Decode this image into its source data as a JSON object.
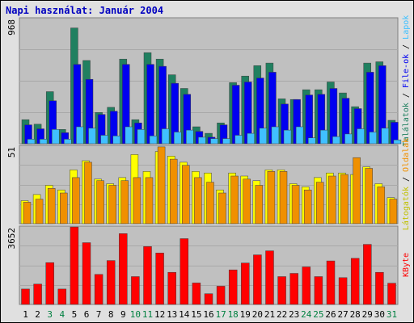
{
  "title": "Napi használat: Január 2004",
  "chart_data": [
    {
      "type": "bar",
      "ymax_label": "968",
      "ylim": [
        0,
        968
      ],
      "categories": [
        "1",
        "2",
        "3",
        "4",
        "5",
        "6",
        "7",
        "8",
        "9",
        "10",
        "11",
        "12",
        "13",
        "14",
        "15",
        "16",
        "17",
        "18",
        "19",
        "20",
        "21",
        "22",
        "23",
        "24",
        "25",
        "26",
        "27",
        "28",
        "29",
        "30",
        "31"
      ],
      "weekend_days": [
        "3",
        "4",
        "10",
        "11",
        "17",
        "18",
        "24",
        "25",
        "31"
      ],
      "series": [
        {
          "name": "Találatok",
          "color": "#208060",
          "values": [
            185,
            150,
            400,
            110,
            890,
            640,
            240,
            280,
            650,
            185,
            700,
            650,
            530,
            425,
            130,
            80,
            160,
            470,
            520,
            600,
            620,
            345,
            340,
            415,
            415,
            475,
            390,
            285,
            620,
            630,
            180
          ]
        },
        {
          "name": "File-ok",
          "color": "#0000f0",
          "values": [
            145,
            115,
            330,
            85,
            610,
            495,
            225,
            250,
            610,
            160,
            610,
            595,
            465,
            380,
            95,
            50,
            145,
            450,
            475,
            505,
            550,
            305,
            340,
            375,
            380,
            425,
            350,
            270,
            550,
            600,
            165
          ]
        },
        {
          "name": "Lapok",
          "color": "#40c0ff",
          "values": [
            35,
            35,
            110,
            35,
            130,
            120,
            65,
            60,
            130,
            110,
            60,
            115,
            90,
            105,
            50,
            40,
            40,
            65,
            80,
            120,
            130,
            105,
            130,
            45,
            105,
            55,
            75,
            115,
            90,
            120,
            30
          ]
        }
      ]
    },
    {
      "type": "bar",
      "ymax_label": "51",
      "ylim": [
        0,
        51
      ],
      "categories": [
        "1",
        "2",
        "3",
        "4",
        "5",
        "6",
        "7",
        "8",
        "9",
        "10",
        "11",
        "12",
        "13",
        "14",
        "15",
        "16",
        "17",
        "18",
        "19",
        "20",
        "21",
        "22",
        "23",
        "24",
        "25",
        "26",
        "27",
        "28",
        "29",
        "30",
        "31"
      ],
      "series": [
        {
          "name": "Látogatók",
          "color": "#ffff00",
          "values": [
            15,
            19,
            25,
            22,
            35,
            41,
            29,
            26,
            30,
            45,
            34,
            47,
            44,
            40,
            34,
            33,
            22,
            33,
            31,
            28,
            35,
            35,
            26,
            24,
            30,
            33,
            33,
            32,
            37,
            26,
            17
          ]
        },
        {
          "name": "Oldalak",
          "color": "#f09000",
          "values": [
            14,
            16,
            23,
            20,
            30,
            40,
            28,
            25,
            28,
            30,
            30,
            50,
            42,
            38,
            30,
            27,
            20,
            31,
            29,
            25,
            34,
            34,
            25,
            22,
            27,
            31,
            32,
            43,
            36,
            24,
            16
          ]
        }
      ]
    },
    {
      "type": "bar",
      "ymax_label": "3652",
      "ylim": [
        0,
        3652
      ],
      "categories": [
        "1",
        "2",
        "3",
        "4",
        "5",
        "6",
        "7",
        "8",
        "9",
        "10",
        "11",
        "12",
        "13",
        "14",
        "15",
        "16",
        "17",
        "18",
        "19",
        "20",
        "21",
        "22",
        "23",
        "24",
        "25",
        "26",
        "27",
        "28",
        "29",
        "30",
        "31"
      ],
      "series": [
        {
          "name": "KByte",
          "color": "#ff0000",
          "values": [
            720,
            950,
            1950,
            720,
            3610,
            2880,
            1400,
            2050,
            3300,
            1300,
            2700,
            2400,
            1500,
            3070,
            1000,
            500,
            850,
            1610,
            1930,
            2310,
            2500,
            1300,
            1450,
            1750,
            1300,
            2030,
            1250,
            2150,
            2800,
            1500,
            990
          ]
        }
      ]
    }
  ],
  "legend": {
    "top": [
      {
        "text": "Találatok",
        "color": "#208060"
      },
      {
        "text": " / ",
        "color": "#000000"
      },
      {
        "text": "File-ok",
        "color": "#0000f0"
      },
      {
        "text": " / ",
        "color": "#000000"
      },
      {
        "text": "Lapok",
        "color": "#40c0ff"
      }
    ],
    "middle": [
      {
        "text": "Látogatók",
        "color": "#c0c000"
      },
      {
        "text": " / ",
        "color": "#000000"
      },
      {
        "text": "Oldalak",
        "color": "#f09000"
      }
    ],
    "bottom": [
      {
        "text": "KByte",
        "color": "#ff0000"
      }
    ]
  },
  "colors": {
    "weekday_label": "#000000",
    "weekend_label": "#008040"
  }
}
